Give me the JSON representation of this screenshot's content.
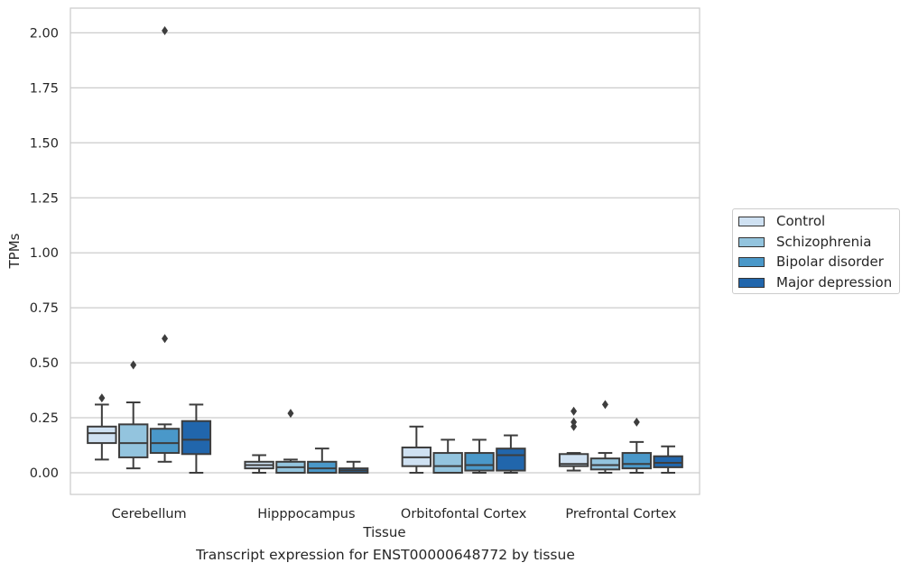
{
  "caption": "Transcript expression for ENST00000648772 by tissue",
  "chart_data": {
    "type": "box",
    "title": "",
    "xlabel": "Tissue",
    "ylabel": "TPMs",
    "ylim": [
      -0.1,
      2.11
    ],
    "yticks": [
      "0.00",
      "0.25",
      "0.50",
      "0.75",
      "1.00",
      "1.25",
      "1.50",
      "1.75",
      "2.00"
    ],
    "grid": "horizontal",
    "legend_position": "right",
    "categories": [
      "Cerebellum",
      "Hipppocampus",
      "Orbitofontal Cortex",
      "Prefrontal Cortex"
    ],
    "series": [
      {
        "name": "Control",
        "color": "#cfe1f2",
        "boxes": [
          {
            "whislo": 0.06,
            "q1": 0.135,
            "med": 0.18,
            "q3": 0.21,
            "whishi": 0.31,
            "fliers": [
              0.34
            ]
          },
          {
            "whislo": 0.0,
            "q1": 0.02,
            "med": 0.035,
            "q3": 0.05,
            "whishi": 0.08,
            "fliers": []
          },
          {
            "whislo": 0.0,
            "q1": 0.03,
            "med": 0.07,
            "q3": 0.115,
            "whishi": 0.21,
            "fliers": []
          },
          {
            "whislo": 0.01,
            "q1": 0.03,
            "med": 0.04,
            "q3": 0.085,
            "whishi": 0.09,
            "fliers": [
              0.21,
              0.23,
              0.28
            ]
          }
        ]
      },
      {
        "name": "Schizophrenia",
        "color": "#93c4de",
        "boxes": [
          {
            "whislo": 0.02,
            "q1": 0.07,
            "med": 0.135,
            "q3": 0.22,
            "whishi": 0.32,
            "fliers": [
              0.49
            ]
          },
          {
            "whislo": 0.0,
            "q1": 0.0,
            "med": 0.025,
            "q3": 0.05,
            "whishi": 0.06,
            "fliers": [
              0.27
            ]
          },
          {
            "whislo": 0.0,
            "q1": 0.0,
            "med": 0.03,
            "q3": 0.09,
            "whishi": 0.15,
            "fliers": []
          },
          {
            "whislo": 0.0,
            "q1": 0.015,
            "med": 0.035,
            "q3": 0.065,
            "whishi": 0.09,
            "fliers": [
              0.31
            ]
          }
        ]
      },
      {
        "name": "Bipolar disorder",
        "color": "#4a98c9",
        "boxes": [
          {
            "whislo": 0.05,
            "q1": 0.09,
            "med": 0.135,
            "q3": 0.2,
            "whishi": 0.22,
            "fliers": [
              0.61,
              2.01
            ]
          },
          {
            "whislo": 0.0,
            "q1": 0.0,
            "med": 0.02,
            "q3": 0.05,
            "whishi": 0.11,
            "fliers": []
          },
          {
            "whislo": 0.0,
            "q1": 0.01,
            "med": 0.035,
            "q3": 0.09,
            "whishi": 0.15,
            "fliers": []
          },
          {
            "whislo": 0.0,
            "q1": 0.02,
            "med": 0.04,
            "q3": 0.09,
            "whishi": 0.14,
            "fliers": [
              0.23
            ]
          }
        ]
      },
      {
        "name": "Major depression",
        "color": "#2166ac",
        "boxes": [
          {
            "whislo": 0.0,
            "q1": 0.085,
            "med": 0.15,
            "q3": 0.235,
            "whishi": 0.31,
            "fliers": []
          },
          {
            "whislo": 0.0,
            "q1": 0.0,
            "med": 0.01,
            "q3": 0.02,
            "whishi": 0.05,
            "fliers": []
          },
          {
            "whislo": 0.0,
            "q1": 0.01,
            "med": 0.08,
            "q3": 0.11,
            "whishi": 0.17,
            "fliers": []
          },
          {
            "whislo": 0.0,
            "q1": 0.025,
            "med": 0.045,
            "q3": 0.075,
            "whishi": 0.12,
            "fliers": []
          }
        ]
      }
    ]
  }
}
